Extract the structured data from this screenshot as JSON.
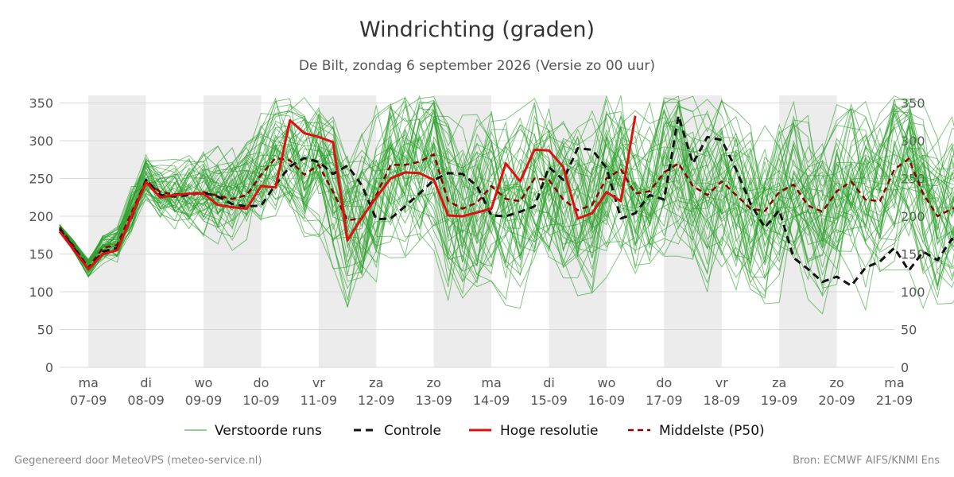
{
  "title": "Windrichting (graden)",
  "subtitle": "De Bilt, zondag  6 september 2026 (Versie zo 00 uur)",
  "footer": {
    "left": "Gegenereerd door MeteoVPS (meteo-service.nl)",
    "right": "Bron: ECMWF AIFS/KNMI Ens"
  },
  "colors": {
    "ensemble": "#2ca02c",
    "control": "#111111",
    "high_res": "#dd1111",
    "median": "#8b0000",
    "weekend_band": "#ececec",
    "grid": "#d8d8d8"
  },
  "chart_data": {
    "type": "line",
    "ylim": [
      0,
      360
    ],
    "yticks": [
      0,
      50,
      100,
      150,
      200,
      250,
      300,
      350
    ],
    "x_range_days": [
      "06-09 12:00",
      "21-09 00:00"
    ],
    "x_ticks": [
      {
        "day": "ma",
        "date": "07-09"
      },
      {
        "day": "di",
        "date": "08-09"
      },
      {
        "day": "wo",
        "date": "09-09"
      },
      {
        "day": "do",
        "date": "10-09"
      },
      {
        "day": "vr",
        "date": "11-09"
      },
      {
        "day": "za",
        "date": "12-09"
      },
      {
        "day": "zo",
        "date": "13-09"
      },
      {
        "day": "ma",
        "date": "14-09"
      },
      {
        "day": "di",
        "date": "15-09"
      },
      {
        "day": "wo",
        "date": "16-09"
      },
      {
        "day": "do",
        "date": "17-09"
      },
      {
        "day": "vr",
        "date": "18-09"
      },
      {
        "day": "za",
        "date": "19-09"
      },
      {
        "day": "zo",
        "date": "20-09"
      },
      {
        "day": "ma",
        "date": "21-09"
      }
    ],
    "shaded_bands": [
      [
        "07-09",
        "08-09"
      ],
      [
        "09-09",
        "10-09"
      ],
      [
        "11-09",
        "12-09"
      ],
      [
        "13-09",
        "14-09"
      ],
      [
        "15-09",
        "16-09"
      ],
      [
        "17-09",
        "18-09"
      ],
      [
        "19-09",
        "20-09"
      ]
    ],
    "legend": {
      "position": "bottom",
      "entries": [
        "Verstoorde runs",
        "Controle",
        "Hoge resolutie",
        "Middelste (P50)"
      ]
    },
    "step_hours": 6,
    "x_start": "06-09 12:00",
    "series": [
      {
        "name": "Controle",
        "style": "dashed",
        "values": [
          183,
          158,
          130,
          153,
          158,
          198,
          248,
          228,
          226,
          228,
          231,
          226,
          216,
          213,
          214,
          242,
          266,
          277,
          272,
          256,
          267,
          241,
          196,
          197,
          213,
          230,
          248,
          257,
          256,
          240,
          201,
          200,
          206,
          213,
          265,
          248,
          290,
          288,
          264,
          197,
          204,
          228,
          222,
          333,
          270,
          305,
          301,
          262,
          217,
          185,
          208,
          145,
          130,
          113,
          120,
          108,
          132,
          140,
          158,
          128,
          153,
          142,
          170,
          125,
          97
        ]
      },
      {
        "name": "Hoge resolutie",
        "style": "solid",
        "values": [
          180,
          155,
          130,
          150,
          155,
          200,
          245,
          225,
          228,
          230,
          230,
          215,
          212,
          210,
          240,
          238,
          327,
          310,
          305,
          298,
          168,
          198,
          225,
          250,
          258,
          257,
          248,
          201,
          200,
          205,
          210,
          270,
          246,
          288,
          287,
          265,
          197,
          204,
          232,
          220,
          333
        ]
      },
      {
        "name": "Middelste (P50)",
        "style": "dashed",
        "values": [
          185,
          160,
          132,
          158,
          162,
          205,
          247,
          232,
          229,
          230,
          232,
          227,
          223,
          228,
          255,
          277,
          274,
          255,
          268,
          232,
          195,
          197,
          228,
          268,
          268,
          272,
          282,
          220,
          210,
          218,
          240,
          223,
          220,
          250,
          248,
          222,
          208,
          215,
          250,
          262,
          230,
          233,
          258,
          270,
          240,
          228,
          246,
          228,
          210,
          207,
          232,
          242,
          214,
          206,
          233,
          246,
          222,
          220,
          262,
          276,
          230,
          200,
          210,
          215,
          198
        ]
      }
    ],
    "ensemble_members": 50
  }
}
